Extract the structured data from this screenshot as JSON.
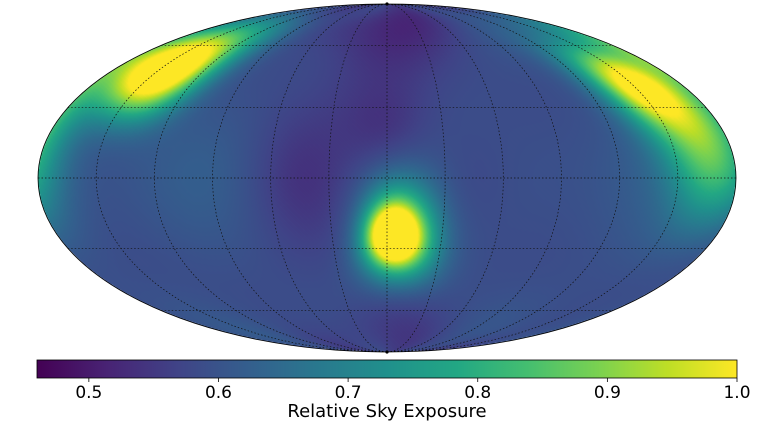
{
  "chart_data": {
    "type": "heatmap",
    "projection": "mollweide",
    "title": "",
    "colormap": "viridis",
    "colorbar": {
      "label": "Relative Sky Exposure",
      "range": [
        0.46,
        1.0
      ],
      "ticks": [
        {
          "value": 0.5,
          "label": "0.5"
        },
        {
          "value": 0.6,
          "label": "0.6"
        },
        {
          "value": 0.7,
          "label": "0.7"
        },
        {
          "value": 0.8,
          "label": "0.8"
        },
        {
          "value": 0.9,
          "label": "0.9"
        },
        {
          "value": 1.0,
          "label": "1.0"
        }
      ],
      "placement": "bottom"
    },
    "background_level": 0.6,
    "graticule": {
      "longitudes_deg": [
        -150,
        -120,
        -90,
        -60,
        -30,
        0,
        30,
        60,
        90,
        120,
        150
      ],
      "latitudes_deg": [
        -60,
        -30,
        0,
        30,
        60
      ],
      "style": "dotted"
    },
    "features": [
      {
        "kind": "hotspot",
        "lon": 3,
        "lat": -24,
        "size_deg": 12,
        "value": 1.0
      },
      {
        "kind": "hotspot",
        "lon": 8,
        "lat": -28,
        "size_deg": 18,
        "value": 0.86
      },
      {
        "kind": "hotspot",
        "lon": 6,
        "lat": -14,
        "size_deg": 20,
        "value": 0.72
      },
      {
        "kind": "hotspot",
        "lon": -150,
        "lat": 50,
        "size_deg": 20,
        "value": 1.0
      },
      {
        "kind": "hotspot",
        "lon": -135,
        "lat": 42,
        "size_deg": 18,
        "value": 0.82
      },
      {
        "kind": "hotspot",
        "lon": 150,
        "lat": 42,
        "size_deg": 18,
        "value": 0.96
      },
      {
        "kind": "hotspot",
        "lon": 165,
        "lat": 25,
        "size_deg": 22,
        "value": 0.84
      },
      {
        "kind": "hotspot",
        "lon": 170,
        "lat": 0,
        "size_deg": 22,
        "value": 0.75
      },
      {
        "kind": "coldspot",
        "lon": 0,
        "lat": 72,
        "size_deg": 28,
        "value": 0.52
      },
      {
        "kind": "coldspot",
        "lon": 0,
        "lat": -75,
        "size_deg": 25,
        "value": 0.55
      },
      {
        "kind": "coldspot",
        "lon": -45,
        "lat": 0,
        "size_deg": 30,
        "value": 0.54
      },
      {
        "kind": "coldspot",
        "lon": 40,
        "lat": 0,
        "size_deg": 28,
        "value": 0.56
      },
      {
        "kind": "coldspot",
        "lon": 0,
        "lat": 20,
        "size_deg": 22,
        "value": 0.55
      }
    ]
  }
}
